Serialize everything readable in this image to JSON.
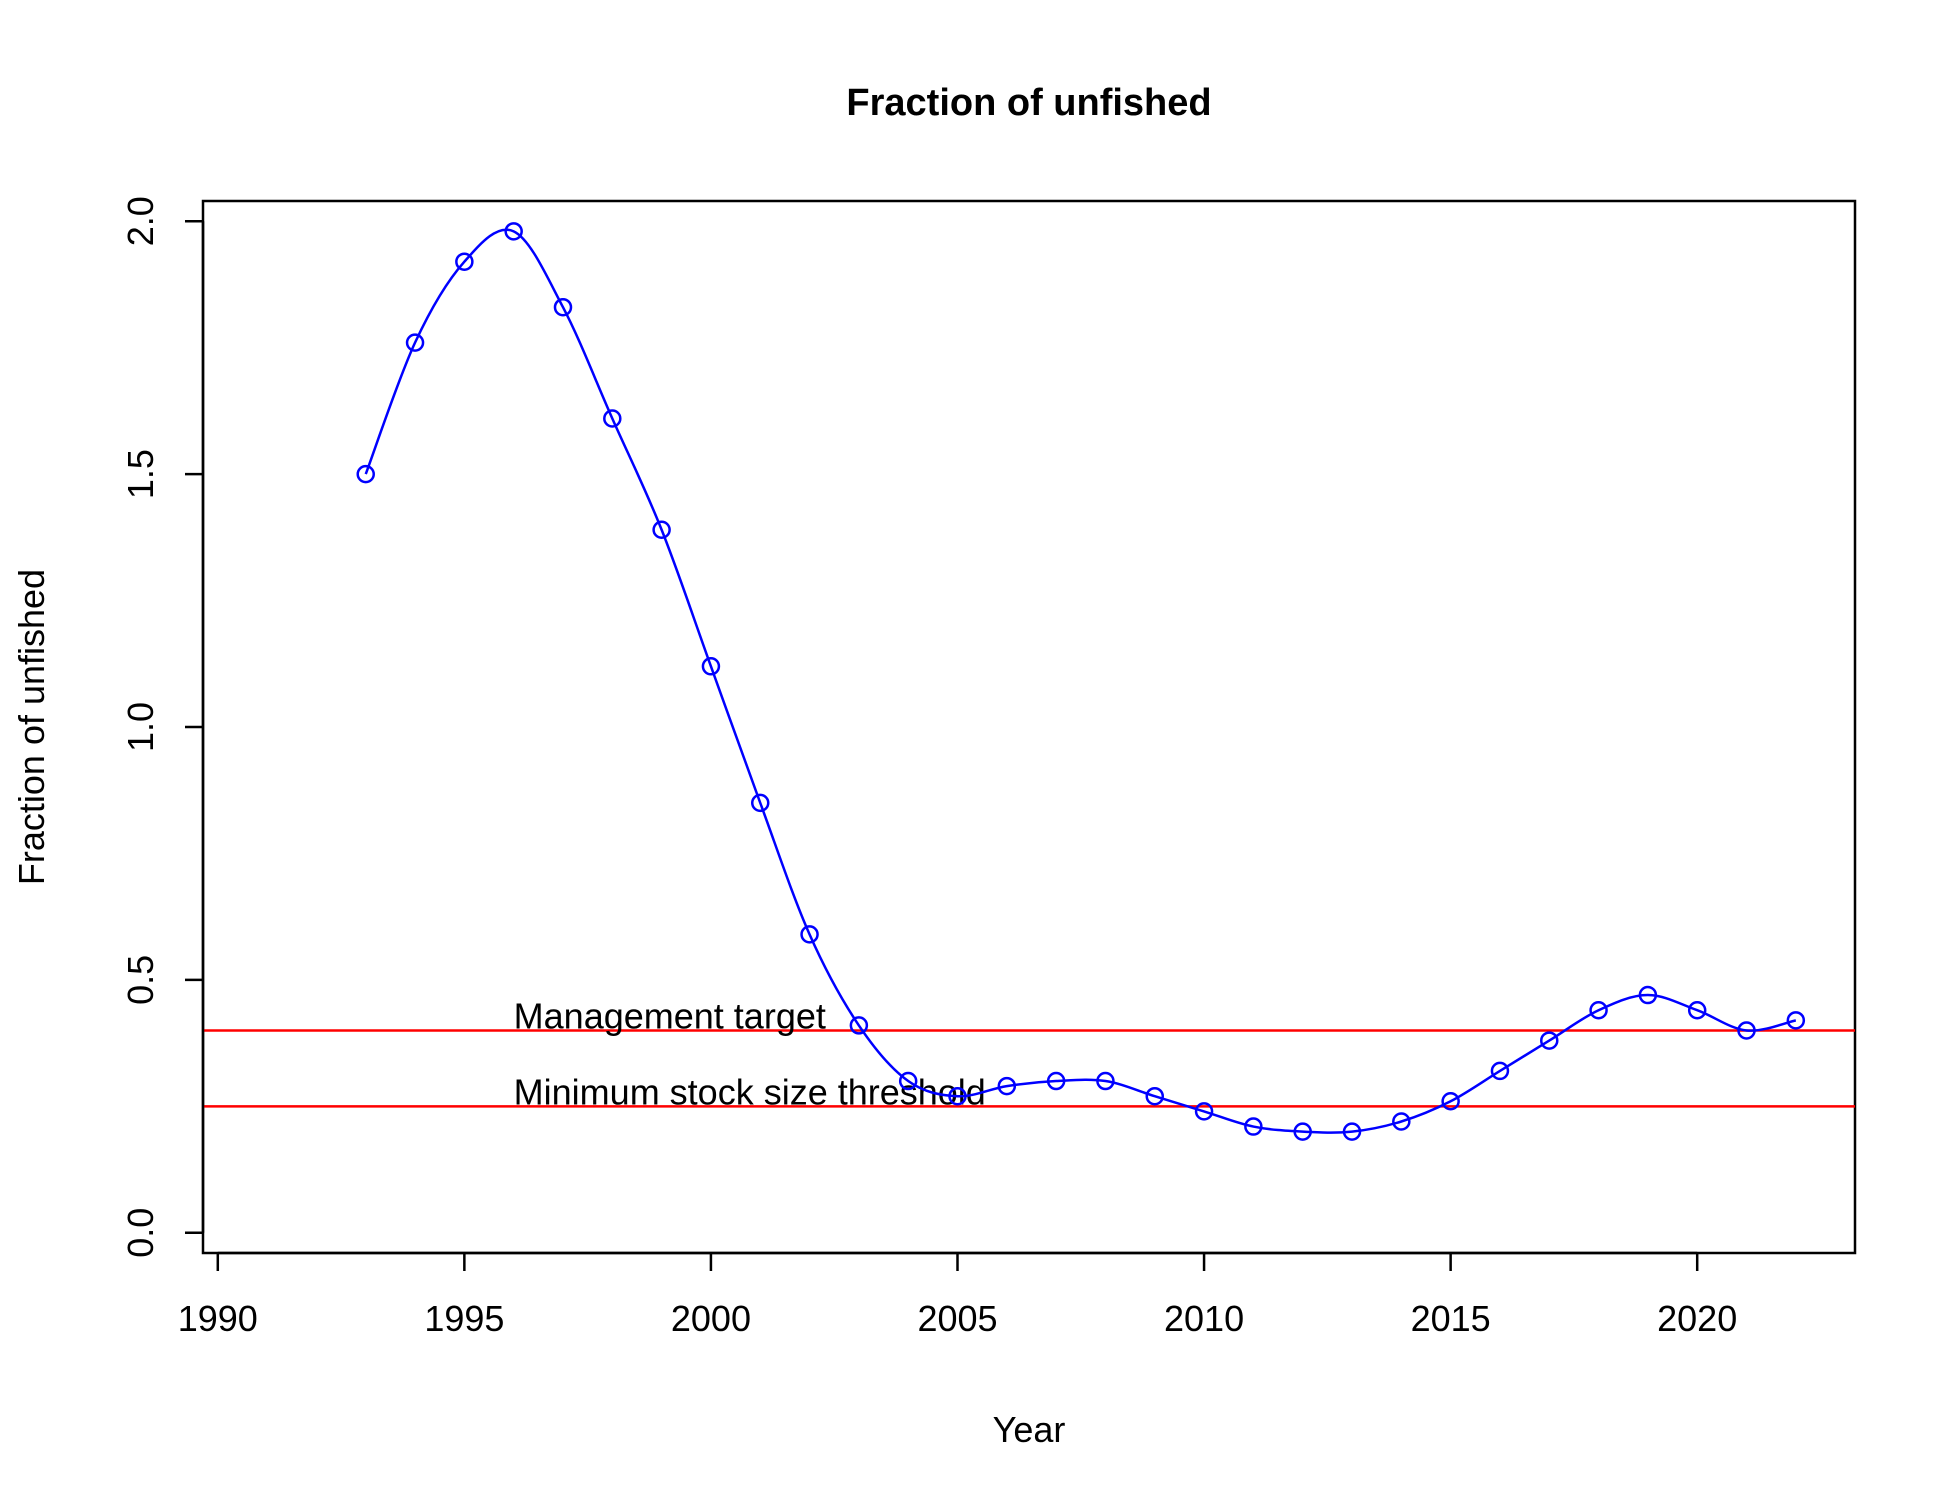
{
  "chart_data": {
    "type": "line",
    "title": "Fraction of unfished",
    "xlabel": "Year",
    "ylabel": "Fraction of unfished",
    "xlim": [
      1989.7,
      1993.0
    ],
    "x_axis_range": [
      1989.7,
      2023.2
    ],
    "ylim": [
      -0.04,
      2.04
    ],
    "x_ticks": [
      1990,
      1995,
      2000,
      2005,
      2010,
      2015,
      2020
    ],
    "x_tick_labels": [
      "1990",
      "1995",
      "2000",
      "2005",
      "2010",
      "2015",
      "2020"
    ],
    "y_ticks": [
      0,
      0.5,
      1,
      1.5,
      2
    ],
    "y_tick_labels": [
      "0.0",
      "0.5",
      "1.0",
      "1.5",
      "2.0"
    ],
    "grid": false,
    "legend": "none",
    "series": [
      {
        "color": "#0000ff",
        "marker": "open-circle",
        "x": [
          1993,
          1994,
          1995,
          1996,
          1997,
          1998,
          1999,
          2000,
          2001,
          2002,
          2003,
          2004,
          2005,
          2006,
          2007,
          2008,
          2009,
          2010,
          2011,
          2012,
          2013,
          2014,
          2015,
          2016,
          2017,
          2018,
          2019,
          2020,
          2021,
          2022
        ],
        "y": [
          1.5,
          1.76,
          1.92,
          1.98,
          1.83,
          1.61,
          1.39,
          1.12,
          0.85,
          0.59,
          0.41,
          0.3,
          0.27,
          0.29,
          0.3,
          0.3,
          0.27,
          0.24,
          0.21,
          0.2,
          0.2,
          0.22,
          0.26,
          0.32,
          0.38,
          0.44,
          0.47,
          0.44,
          0.4,
          0.42
        ]
      }
    ],
    "reference_lines": [
      {
        "y": 0.4,
        "color": "#ff0000",
        "label": "Management target"
      },
      {
        "y": 0.25,
        "color": "#ff0000",
        "label": "Minimum stock size threshold"
      }
    ]
  }
}
